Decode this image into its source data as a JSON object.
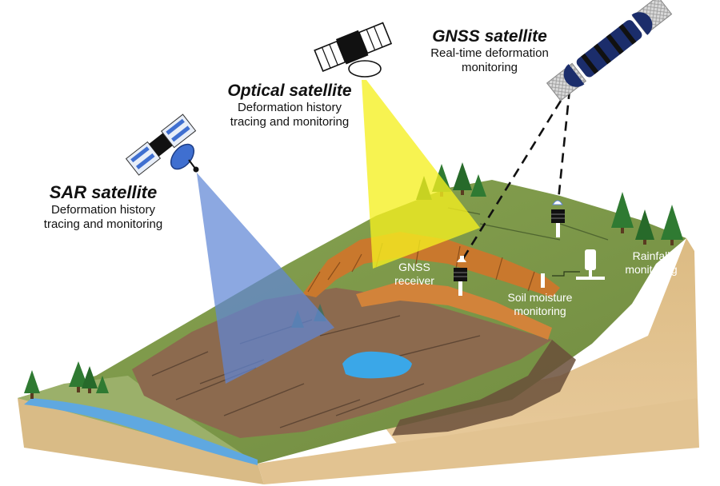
{
  "satellites": {
    "sar": {
      "title": "SAR satellite",
      "desc_line1": "Deformation history",
      "desc_line2": "tracing and monitoring"
    },
    "optical": {
      "title": "Optical satellite",
      "desc_line1": "Deformation history",
      "desc_line2": "tracing and monitoring"
    },
    "gnss": {
      "title": "GNSS satellite",
      "desc_line1": "Real-time deformation",
      "desc_line2": "monitoring"
    }
  },
  "ground_sensors": {
    "gnss_receiver": {
      "line1": "GNSS",
      "line2": "receiver"
    },
    "soil_moisture": {
      "line1": "Soil moisture",
      "line2": "monitoring"
    },
    "rainfall": {
      "line1": "Rainfall",
      "line2": "monitoring"
    }
  },
  "colors": {
    "sar_beam": "#5f86d6",
    "optical_beam": "#f5f020",
    "grass": "#7f9a47",
    "soil_cliff": "#d8b67e",
    "landslide": "#8c6a4e",
    "scarp": "#c9782d",
    "water": "#3aa7e8",
    "tree": "#2f7a32"
  },
  "icons": [
    "sar-satellite-icon",
    "optical-satellite-icon",
    "gnss-satellite-icon",
    "gnss-receiver-icon",
    "soil-sensor-icon",
    "rain-gauge-icon",
    "tree-icon"
  ]
}
